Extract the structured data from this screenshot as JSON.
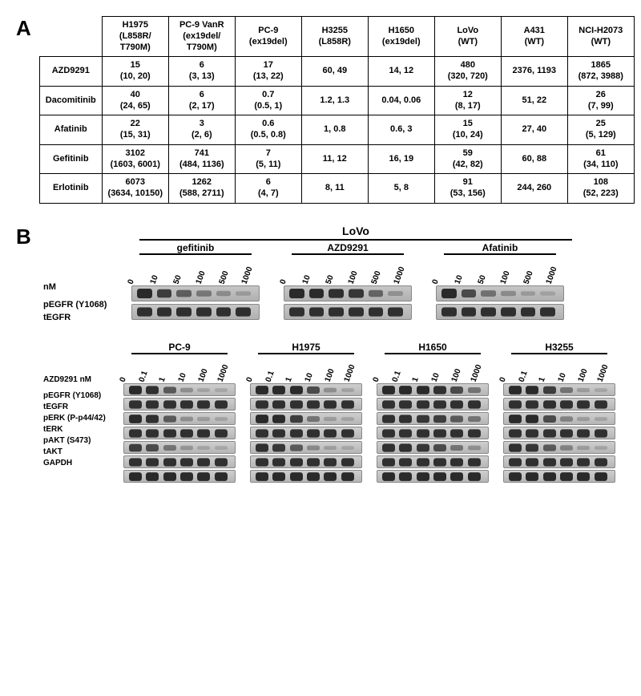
{
  "panelA": {
    "label": "A",
    "columns": [
      {
        "line1": "H1975",
        "line2": "(L858R/",
        "line3": "T790M)"
      },
      {
        "line1": "PC-9 VanR",
        "line2": "(ex19del/",
        "line3": "T790M)"
      },
      {
        "line1": "PC-9",
        "line2": "(ex19del)",
        "line3": ""
      },
      {
        "line1": "H3255",
        "line2": "(L858R)",
        "line3": ""
      },
      {
        "line1": "H1650",
        "line2": "(ex19del)",
        "line3": ""
      },
      {
        "line1": "LoVo",
        "line2": "(WT)",
        "line3": ""
      },
      {
        "line1": "A431",
        "line2": "(WT)",
        "line3": ""
      },
      {
        "line1": "NCI-H2073",
        "line2": "(WT)",
        "line3": ""
      }
    ],
    "rows": [
      {
        "name": "AZD9291",
        "cells": [
          {
            "v": "15",
            "ci": "(10, 20)"
          },
          {
            "v": "6",
            "ci": "(3, 13)"
          },
          {
            "v": "17",
            "ci": "(13, 22)"
          },
          {
            "v": "60, 49",
            "ci": ""
          },
          {
            "v": "14, 12",
            "ci": ""
          },
          {
            "v": "480",
            "ci": "(320, 720)"
          },
          {
            "v": "2376, 1193",
            "ci": ""
          },
          {
            "v": "1865",
            "ci": "(872, 3988)"
          }
        ]
      },
      {
        "name": "Dacomitinib",
        "cells": [
          {
            "v": "40",
            "ci": "(24, 65)"
          },
          {
            "v": "6",
            "ci": "(2, 17)"
          },
          {
            "v": "0.7",
            "ci": "(0.5, 1)"
          },
          {
            "v": "1.2, 1.3",
            "ci": ""
          },
          {
            "v": "0.04, 0.06",
            "ci": ""
          },
          {
            "v": "12",
            "ci": "(8, 17)"
          },
          {
            "v": "51, 22",
            "ci": ""
          },
          {
            "v": "26",
            "ci": "(7, 99)"
          }
        ]
      },
      {
        "name": "Afatinib",
        "cells": [
          {
            "v": "22",
            "ci": "(15, 31)"
          },
          {
            "v": "3",
            "ci": "(2, 6)"
          },
          {
            "v": "0.6",
            "ci": "(0.5, 0.8)"
          },
          {
            "v": "1, 0.8",
            "ci": ""
          },
          {
            "v": "0.6, 3",
            "ci": ""
          },
          {
            "v": "15",
            "ci": "(10, 24)"
          },
          {
            "v": "27, 40",
            "ci": ""
          },
          {
            "v": "25",
            "ci": "(5, 129)"
          }
        ]
      },
      {
        "name": "Gefitinib",
        "cells": [
          {
            "v": "3102",
            "ci": "(1603, 6001)"
          },
          {
            "v": "741",
            "ci": "(484, 1136)"
          },
          {
            "v": "7",
            "ci": "(5, 11)"
          },
          {
            "v": "11, 12",
            "ci": ""
          },
          {
            "v": "16, 19",
            "ci": ""
          },
          {
            "v": "59",
            "ci": "(42, 82)"
          },
          {
            "v": "60, 88",
            "ci": ""
          },
          {
            "v": "61",
            "ci": "(34, 110)"
          }
        ]
      },
      {
        "name": "Erlotinib",
        "cells": [
          {
            "v": "6073",
            "ci": "(3634, 10150)"
          },
          {
            "v": "1262",
            "ci": "(588, 2711)"
          },
          {
            "v": "6",
            "ci": "(4, 7)"
          },
          {
            "v": "8, 11",
            "ci": ""
          },
          {
            "v": "5, 8",
            "ci": ""
          },
          {
            "v": "91",
            "ci": "(53, 156)"
          },
          {
            "v": "244, 260",
            "ci": ""
          },
          {
            "v": "108",
            "ci": "(52, 223)"
          }
        ]
      }
    ]
  },
  "panelB": {
    "label": "B",
    "lovo": {
      "title": "LoVo",
      "treatments": [
        "gefitinib",
        "AZD9291",
        "Afatinib"
      ],
      "doses": [
        "0",
        "10",
        "50",
        "100",
        "500",
        "1000"
      ],
      "dose_unit": "nM",
      "row_labels": [
        "pEGFR (Y1068)",
        "tEGFR"
      ],
      "band_intensity": {
        "gefitinib": {
          "pEGFR": [
            1.0,
            0.8,
            0.55,
            0.35,
            0.2,
            0.08
          ],
          "tEGFR": [
            0.9,
            0.9,
            0.9,
            0.9,
            0.9,
            0.9
          ]
        },
        "AZD9291": {
          "pEGFR": [
            1.0,
            0.95,
            0.9,
            0.85,
            0.5,
            0.15
          ],
          "tEGFR": [
            0.9,
            0.9,
            0.9,
            0.9,
            0.9,
            0.9
          ]
        },
        "Afatinib": {
          "pEGFR": [
            1.0,
            0.7,
            0.4,
            0.2,
            0.08,
            0.03
          ],
          "tEGFR": [
            0.9,
            0.9,
            0.9,
            0.9,
            0.9,
            0.9
          ]
        }
      }
    },
    "lower": {
      "drug_label": "AZD9291 nM",
      "doses": [
        "0",
        "0.1",
        "1",
        "10",
        "100",
        "1000"
      ],
      "cell_lines": [
        "PC-9",
        "H1975",
        "H1650",
        "H3255"
      ],
      "row_labels": [
        "pEGFR (Y1068)",
        "tEGFR",
        "pERK (P-p44/42)",
        "tERK",
        "pAKT (S473)",
        "tAKT",
        "GAPDH"
      ],
      "band_intensity": {
        "PC-9": {
          "pEGFR": [
            1,
            0.9,
            0.6,
            0.2,
            0.05,
            0.02
          ],
          "tEGFR": [
            0.9,
            0.9,
            0.9,
            0.9,
            0.9,
            0.9
          ],
          "pERK": [
            1,
            0.9,
            0.6,
            0.2,
            0.1,
            0.05
          ],
          "tERK": [
            0.9,
            0.9,
            0.9,
            0.9,
            0.9,
            0.9
          ],
          "pAKT": [
            0.8,
            0.7,
            0.4,
            0.15,
            0.05,
            0.02
          ],
          "tAKT": [
            0.9,
            0.9,
            0.9,
            0.9,
            0.9,
            0.9
          ],
          "GAPDH": [
            1,
            1,
            1,
            1,
            1,
            1
          ]
        },
        "H1975": {
          "pEGFR": [
            1,
            1,
            0.95,
            0.7,
            0.2,
            0.05
          ],
          "tEGFR": [
            0.9,
            0.9,
            0.9,
            0.9,
            0.9,
            0.9
          ],
          "pERK": [
            1,
            0.95,
            0.8,
            0.4,
            0.1,
            0.05
          ],
          "tERK": [
            0.9,
            0.9,
            0.9,
            0.9,
            0.9,
            0.9
          ],
          "pAKT": [
            0.9,
            0.85,
            0.6,
            0.25,
            0.08,
            0.03
          ],
          "tAKT": [
            0.9,
            0.9,
            0.9,
            0.9,
            0.9,
            0.9
          ],
          "GAPDH": [
            1,
            1,
            1,
            1,
            1,
            1
          ]
        },
        "H1650": {
          "pEGFR": [
            1,
            1,
            0.95,
            0.9,
            0.7,
            0.4
          ],
          "tEGFR": [
            0.9,
            0.9,
            0.9,
            0.9,
            0.9,
            0.9
          ],
          "pERK": [
            0.9,
            0.9,
            0.85,
            0.8,
            0.6,
            0.4
          ],
          "tERK": [
            0.9,
            0.9,
            0.9,
            0.9,
            0.9,
            0.9
          ],
          "pAKT": [
            0.9,
            0.9,
            0.85,
            0.7,
            0.4,
            0.2
          ],
          "tAKT": [
            0.9,
            0.9,
            0.9,
            0.9,
            0.9,
            0.9
          ],
          "GAPDH": [
            1,
            1,
            1,
            1,
            1,
            1
          ]
        },
        "H3255": {
          "pEGFR": [
            1,
            0.95,
            0.8,
            0.4,
            0.1,
            0.03
          ],
          "tEGFR": [
            0.9,
            0.9,
            0.9,
            0.9,
            0.9,
            0.9
          ],
          "pERK": [
            1,
            0.95,
            0.7,
            0.3,
            0.1,
            0.05
          ],
          "tERK": [
            0.9,
            0.9,
            0.9,
            0.9,
            0.9,
            0.9
          ],
          "pAKT": [
            0.9,
            0.85,
            0.6,
            0.3,
            0.1,
            0.05
          ],
          "tAKT": [
            0.9,
            0.9,
            0.9,
            0.9,
            0.9,
            0.9
          ],
          "GAPDH": [
            1,
            1,
            1,
            1,
            1,
            1
          ]
        }
      }
    }
  },
  "style": {
    "blot_bg": "#c6c6c6",
    "band_color": "#2a2a2a",
    "border_color": "#000000",
    "font_family": "Arial"
  }
}
